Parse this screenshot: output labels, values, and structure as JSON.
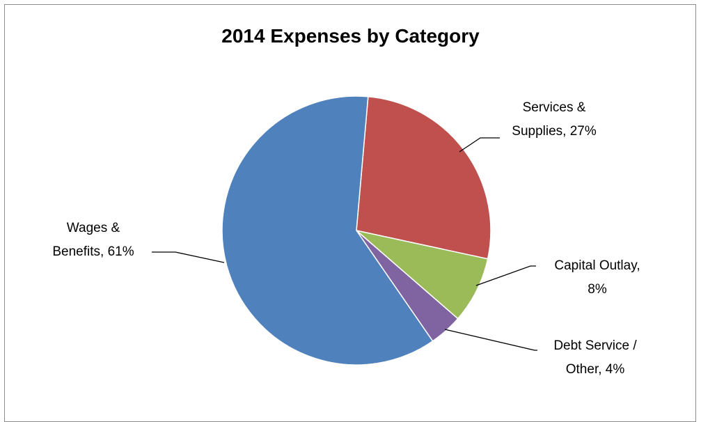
{
  "chart_data": {
    "type": "pie",
    "title": "2014 Expenses by Category",
    "slices": [
      {
        "name": "Services & Supplies",
        "value": 27,
        "color": "#C0504D",
        "label_lines": [
          "Services &",
          "Supplies, 27%"
        ]
      },
      {
        "name": "Capital Outlay",
        "value": 8,
        "color": "#9BBB59",
        "label_lines": [
          "Capital Outlay,",
          "8%"
        ]
      },
      {
        "name": "Debt Service / Other",
        "value": 4,
        "color": "#8064A2",
        "label_lines": [
          "Debt Service /",
          "Other, 4%"
        ]
      },
      {
        "name": "Wages & Benefits",
        "value": 61,
        "color": "#4F81BD",
        "label_lines": [
          "Wages &",
          "Benefits, 61%"
        ]
      }
    ],
    "legend": "none"
  }
}
